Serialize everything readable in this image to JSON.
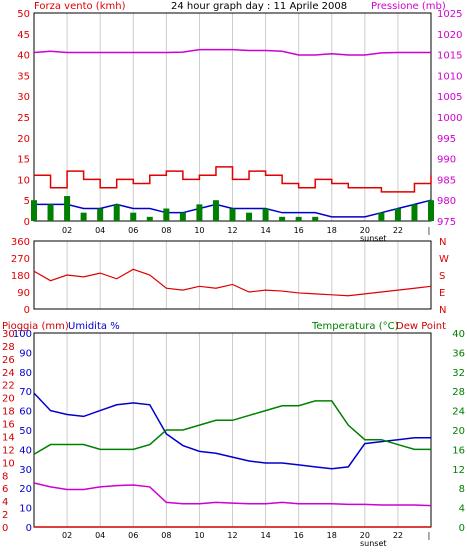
{
  "colors": {
    "wind": "#e00000",
    "wind_dir": "#e00000",
    "pressure": "#d000d0",
    "blue": "#0000cc",
    "green": "#008000",
    "rain": "#d00000",
    "axis_text": "#000000",
    "grid": "#cccccc",
    "white": "#ffffff"
  },
  "top_panel": {
    "left_title": "Forza vento (kmh)",
    "center_title": "24 hour graph day : 11 Aprile 2008",
    "right_title": "Pressione (mb)",
    "left_ticks": [
      "0",
      "5",
      "10",
      "15",
      "20",
      "25",
      "30",
      "35",
      "40",
      "45",
      "50"
    ],
    "right_ticks": [
      "975",
      "980",
      "985",
      "990",
      "995",
      "1000",
      "1005",
      "1010",
      "1015",
      "1020",
      "1025"
    ]
  },
  "middle_panel": {
    "left_ticks": [
      "0",
      "90",
      "180",
      "270",
      "360"
    ],
    "right_labels": [
      "N",
      "W",
      "S",
      "E",
      "N"
    ]
  },
  "bottom_panel": {
    "title_rain": "Pioggia (mm)",
    "title_humidity": "Umidita %",
    "title_temp": "Temperatura (°C)",
    "title_dewpoint": "Dew Point",
    "rain_ticks": [
      "0",
      "2",
      "4",
      "6",
      "8",
      "10",
      "12",
      "14",
      "16",
      "18",
      "20",
      "22",
      "24",
      "26",
      "28",
      "30"
    ],
    "hum_ticks": [
      "0",
      "10",
      "20",
      "30",
      "40",
      "50",
      "60",
      "70",
      "80",
      "90",
      "100"
    ],
    "temp_ticks": [
      "0",
      "4",
      "8",
      "12",
      "16",
      "20",
      "24",
      "28",
      "32",
      "36",
      "40"
    ]
  },
  "x_ticks": [
    "02",
    "04",
    "06",
    "08",
    "10",
    "12",
    "14",
    "16",
    "18",
    "20",
    "22"
  ],
  "sunset_label": "sunset",
  "chart_data": [
    {
      "type": "line",
      "title": "24 hour graph day : 11 Aprile 2008",
      "xlabel": "",
      "ylabel": "Forza vento (kmh)",
      "y2label": "Pressione (mb)",
      "ylim": [
        0,
        50
      ],
      "y2lim": [
        975,
        1025
      ],
      "x": [
        0,
        1,
        2,
        3,
        4,
        5,
        6,
        7,
        8,
        9,
        10,
        11,
        12,
        13,
        14,
        15,
        16,
        17,
        18,
        19,
        20,
        21,
        22,
        23,
        24
      ],
      "series": [
        {
          "name": "Forza vento (kmh)",
          "axis": "left",
          "style": "step",
          "values": [
            11,
            8,
            12,
            10,
            8,
            10,
            9,
            11,
            12,
            10,
            11,
            13,
            10,
            12,
            11,
            9,
            8,
            10,
            9,
            8,
            8,
            7,
            7,
            9,
            11
          ]
        },
        {
          "name": "Pressione (mb)",
          "axis": "right",
          "values": [
            1015.5,
            1015.8,
            1015.5,
            1015.5,
            1015.5,
            1015.5,
            1015.5,
            1015.5,
            1015.5,
            1015.6,
            1016.2,
            1016.2,
            1016.2,
            1016.0,
            1016.0,
            1015.8,
            1014.9,
            1014.9,
            1015.2,
            1014.9,
            1014.9,
            1015.4,
            1015.5,
            1015.5,
            1015.5
          ]
        },
        {
          "name": "",
          "axis": "left",
          "color": "blue",
          "values": [
            4,
            4,
            4,
            3,
            3,
            4,
            3,
            3,
            2,
            2,
            3,
            4,
            3,
            3,
            3,
            2,
            2,
            2,
            1,
            1,
            1,
            2,
            3,
            4,
            5
          ]
        },
        {
          "name": "",
          "axis": "left",
          "color": "green",
          "style": "bars",
          "values": [
            5,
            4,
            6,
            2,
            3,
            4,
            2,
            1,
            3,
            2,
            4,
            5,
            3,
            2,
            3,
            1,
            1,
            1,
            0,
            0,
            0,
            2,
            3,
            4,
            5
          ]
        }
      ]
    },
    {
      "type": "line",
      "xlabel": "",
      "ylabel": "",
      "ylim": [
        0,
        360
      ],
      "x": [
        0,
        1,
        2,
        3,
        4,
        5,
        6,
        7,
        8,
        9,
        10,
        11,
        12,
        13,
        14,
        15,
        16,
        17,
        18,
        19,
        20,
        21,
        22,
        23,
        24
      ],
      "series": [
        {
          "name": "",
          "values": [
            200,
            150,
            180,
            170,
            190,
            160,
            210,
            180,
            110,
            100,
            120,
            110,
            130,
            90,
            100,
            95,
            85,
            80,
            75,
            70,
            80,
            90,
            100,
            110,
            120
          ]
        }
      ]
    },
    {
      "type": "line",
      "xlabel": "",
      "ylabel": "Umidita %",
      "y2label": "Temperatura (°C)",
      "ylim": [
        0,
        100
      ],
      "y2lim": [
        0,
        40
      ],
      "x": [
        0,
        1,
        2,
        3,
        4,
        5,
        6,
        7,
        8,
        9,
        10,
        11,
        12,
        13,
        14,
        15,
        16,
        17,
        18,
        19,
        20,
        21,
        22,
        23,
        24
      ],
      "series": [
        {
          "name": "Umidita %",
          "axis": "left",
          "color": "blue",
          "values": [
            69,
            60,
            58,
            57,
            60,
            63,
            64,
            63,
            48,
            42,
            39,
            38,
            36,
            34,
            33,
            33,
            32,
            31,
            30,
            31,
            43,
            44,
            45,
            46,
            46
          ]
        },
        {
          "name": "Temperatura (°C)",
          "axis": "right",
          "color": "green",
          "values": [
            15,
            17,
            17,
            17,
            16,
            16,
            16,
            17,
            20,
            20,
            21,
            22,
            22,
            23,
            24,
            25,
            25,
            26,
            26,
            21,
            18,
            18,
            17,
            16,
            16
          ]
        },
        {
          "name": "Dew Point",
          "axis": "left_rain",
          "color": "magenta",
          "values": [
            6.8,
            6.2,
            5.8,
            5.8,
            6.2,
            6.4,
            6.5,
            6.2,
            3.8,
            3.6,
            3.6,
            3.8,
            3.7,
            3.6,
            3.6,
            3.8,
            3.6,
            3.6,
            3.6,
            3.5,
            3.5,
            3.4,
            3.4,
            3.4,
            3.3
          ]
        },
        {
          "name": "Pioggia (mm)",
          "axis": "left_rain",
          "color": "red",
          "values": [
            0,
            0,
            0,
            0,
            0,
            0,
            0,
            0,
            0,
            0,
            0,
            0,
            0,
            0,
            0,
            0,
            0,
            0,
            0,
            0,
            0,
            0,
            0,
            0,
            0
          ]
        }
      ]
    }
  ]
}
